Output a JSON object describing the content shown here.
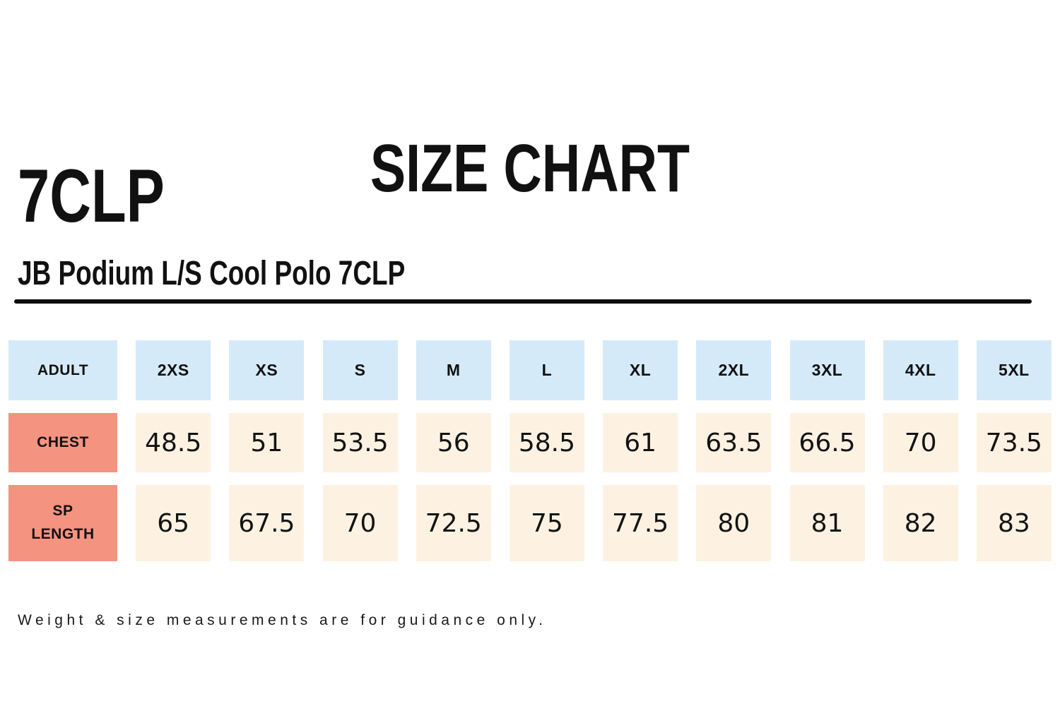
{
  "title": "SIZE CHART",
  "product": {
    "code": "7CLP",
    "name": "JB Podium L/S Cool Polo 7CLP"
  },
  "table": {
    "header": [
      "ADULT",
      "2XS",
      "XS",
      "S",
      "M",
      "L",
      "XL",
      "2XL",
      "3XL",
      "4XL",
      "5XL"
    ],
    "rows": [
      {
        "label": "CHEST",
        "values": [
          "48.5",
          "51",
          "53.5",
          "56",
          "58.5",
          "61",
          "63.5",
          "66.5",
          "70",
          "73.5"
        ]
      },
      {
        "label": "SP LENGTH",
        "values": [
          "65",
          "67.5",
          "70",
          "72.5",
          "75",
          "77.5",
          "80",
          "81",
          "82",
          "83"
        ]
      }
    ]
  },
  "footer": "Weight & size measurements are for guidance only.",
  "colors": {
    "header_cell": "#d5eaf8",
    "label_cell": "#f4937f",
    "value_cell": "#fdf2e2",
    "divider": "#0d0d0d",
    "text": "#111111"
  },
  "chart_data": {
    "type": "table",
    "title": "SIZE CHART",
    "subtitle": "JB Podium L/S Cool Polo 7CLP",
    "categories": [
      "2XS",
      "XS",
      "S",
      "M",
      "L",
      "XL",
      "2XL",
      "3XL",
      "4XL",
      "5XL"
    ],
    "series": [
      {
        "name": "CHEST",
        "values": [
          48.5,
          51,
          53.5,
          56,
          58.5,
          61,
          63.5,
          66.5,
          70,
          73.5
        ]
      },
      {
        "name": "SP LENGTH",
        "values": [
          65,
          67.5,
          70,
          72.5,
          75,
          77.5,
          80,
          81,
          82,
          83
        ]
      }
    ],
    "annotations": [
      "Weight & size measurements are for guidance only."
    ]
  }
}
